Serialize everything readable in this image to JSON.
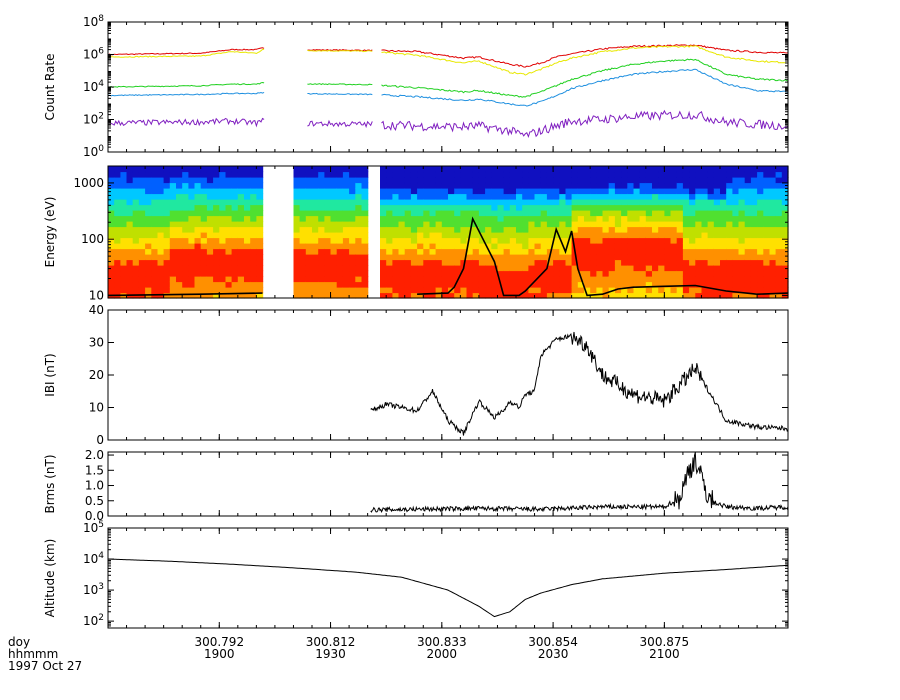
{
  "chart_data": [
    {
      "type": "line",
      "panel": "count-rate",
      "ylabel": "Count Rate",
      "yscale": "log",
      "ylim": [
        1,
        100000000
      ],
      "yticks": [
        1,
        100,
        10000,
        1000000,
        100000000
      ],
      "ytick_labels": [
        {
          "base": "10",
          "exp": "0"
        },
        {
          "base": "10",
          "exp": "2"
        },
        {
          "base": "10",
          "exp": "4"
        },
        {
          "base": "10",
          "exp": "6"
        },
        {
          "base": "10",
          "exp": "8"
        }
      ],
      "x": [
        0,
        30,
        40,
        48,
        50,
        56,
        58,
        85,
        100,
        115,
        120,
        130,
        135,
        140,
        145,
        150,
        160,
        170,
        180,
        190,
        200,
        210,
        215,
        220
      ],
      "gaps": [
        [
          51,
          64
        ],
        [
          86,
          88
        ]
      ],
      "series": [
        {
          "color": "#e00000",
          "values": [
            1000000,
            1200000,
            2000000,
            2000000,
            2500000,
            2200000,
            2000000,
            1800000,
            1500000,
            600000,
            700000,
            250000,
            180000,
            300000,
            700000,
            1100000,
            2200000,
            3200000,
            3500000,
            3800000,
            1800000,
            1400000,
            1300000,
            1200000
          ]
        },
        {
          "color": "#e8e800",
          "values": [
            700000,
            800000,
            1500000,
            1200000,
            2000000,
            2000000,
            1800000,
            1600000,
            900000,
            300000,
            400000,
            80000,
            60000,
            120000,
            300000,
            600000,
            1500000,
            2500000,
            3000000,
            3200000,
            700000,
            400000,
            350000,
            320000
          ]
        },
        {
          "color": "#20d020",
          "values": [
            10000,
            12000,
            15000,
            15000,
            18000,
            18000,
            16000,
            14000,
            9000,
            5000,
            6000,
            3000,
            2500,
            5000,
            12000,
            30000,
            100000,
            250000,
            400000,
            500000,
            60000,
            30000,
            28000,
            25000
          ]
        },
        {
          "color": "#2090e0",
          "values": [
            3000,
            3500,
            4000,
            4000,
            4500,
            4500,
            4000,
            3500,
            2500,
            1500,
            1800,
            900,
            700,
            1200,
            3000,
            8000,
            25000,
            60000,
            90000,
            120000,
            15000,
            6000,
            5500,
            5000
          ]
        },
        {
          "color": "#8020c0",
          "values": [
            60,
            70,
            80,
            60,
            80,
            70,
            60,
            50,
            40,
            35,
            40,
            20,
            10,
            20,
            40,
            80,
            100,
            150,
            180,
            200,
            70,
            50,
            45,
            40
          ]
        }
      ]
    },
    {
      "type": "heatmap",
      "panel": "energy-spectrogram",
      "ylabel": "Energy (eV)",
      "yscale": "log",
      "ylim": [
        9,
        2000
      ],
      "yticks": [
        10,
        100,
        1000
      ],
      "ytick_labels": [
        "10",
        "100",
        "1000"
      ],
      "gaps": [
        [
          51,
          59
        ],
        [
          85,
          87
        ]
      ],
      "color_scale": [
        "#1010c0",
        "#0060ff",
        "#00c8ff",
        "#20e8a0",
        "#50e030",
        "#c0e000",
        "#ffe000",
        "#ff9000",
        "#ff2000"
      ],
      "overlay_x": [
        0,
        30,
        50,
        85,
        100,
        110,
        112,
        115,
        118,
        125,
        128,
        131,
        133,
        135,
        142,
        145,
        148,
        150,
        152,
        155,
        160,
        165,
        170,
        180,
        190,
        200,
        210,
        220
      ],
      "overlay_energy": [
        10,
        10.5,
        11,
        11,
        10.5,
        11,
        14,
        30,
        230,
        40,
        10,
        10,
        10,
        12,
        30,
        150,
        60,
        140,
        30,
        10,
        10.5,
        13,
        14,
        14.5,
        15,
        12,
        10.5,
        11
      ]
    },
    {
      "type": "line",
      "panel": "b-magnitude",
      "ylabel": "IBI (nT)",
      "ylim": [
        0,
        40
      ],
      "yticks": [
        0,
        10,
        20,
        30,
        40
      ],
      "x": [
        0,
        5,
        10,
        15,
        20,
        22,
        25,
        28,
        30,
        33,
        35,
        38,
        40,
        42,
        45,
        48,
        50,
        55,
        60,
        65,
        70,
        75,
        80,
        85,
        90,
        95,
        100,
        105,
        110,
        115,
        120,
        125,
        128,
        130,
        133,
        135,
        138,
        140,
        145,
        150,
        155,
        160,
        170,
        180,
        190,
        200,
        210,
        220
      ],
      "start_x": 85,
      "values": [
        0,
        0,
        0,
        0,
        0,
        0,
        0,
        0,
        0,
        0,
        0,
        0,
        0,
        0,
        0,
        0,
        0,
        0,
        0,
        0,
        0,
        0,
        0,
        9,
        11,
        10,
        9,
        15,
        6,
        2,
        12,
        7,
        9,
        12,
        10,
        14,
        15,
        26,
        31,
        32,
        29,
        20,
        14,
        12,
        22,
        6,
        4,
        3.5
      ]
    },
    {
      "type": "line",
      "panel": "b-rms",
      "ylabel": "Brms (nT)",
      "ylim": [
        0,
        2.1
      ],
      "yticks": [
        0.0,
        0.5,
        1.0,
        1.5,
        2.0
      ],
      "ytick_labels": [
        "0.0",
        "0.5",
        "1.0",
        "1.5",
        "2.0"
      ],
      "start_x": 85,
      "x": [
        85,
        100,
        120,
        140,
        160,
        180,
        185,
        188,
        190,
        192,
        195,
        200,
        210,
        220
      ],
      "values": [
        0.2,
        0.22,
        0.25,
        0.22,
        0.3,
        0.3,
        0.6,
        1.5,
        1.9,
        1.2,
        0.5,
        0.3,
        0.25,
        0.3
      ]
    },
    {
      "type": "line",
      "panel": "altitude",
      "ylabel": "Altitude (km)",
      "yscale": "log",
      "ylim": [
        60,
        100000
      ],
      "yticks": [
        100,
        1000,
        10000,
        100000
      ],
      "ytick_labels": [
        {
          "base": "10",
          "exp": "2"
        },
        {
          "base": "10",
          "exp": "3"
        },
        {
          "base": "10",
          "exp": "4"
        },
        {
          "base": "10",
          "exp": "5"
        }
      ],
      "x": [
        0,
        20,
        40,
        60,
        80,
        95,
        110,
        120,
        125,
        130,
        135,
        140,
        150,
        160,
        180,
        200,
        220
      ],
      "values": [
        10000,
        8500,
        6800,
        5200,
        3800,
        2600,
        1000,
        300,
        140,
        200,
        500,
        800,
        1500,
        2300,
        3500,
        4600,
        6300
      ]
    }
  ],
  "x_axis": {
    "row_labels": [
      "doy",
      "hhmmm",
      "1997 Oct 27"
    ],
    "ticks": [
      {
        "x": 36,
        "doy": "300.792",
        "hhmm": "1900"
      },
      {
        "x": 72,
        "doy": "300.812",
        "hhmm": "1930"
      },
      {
        "x": 108,
        "doy": "300.833",
        "hhmm": "2000"
      },
      {
        "x": 144,
        "doy": "300.854",
        "hhmm": "2030"
      },
      {
        "x": 180,
        "doy": "300.875",
        "hhmm": "2100"
      }
    ]
  }
}
